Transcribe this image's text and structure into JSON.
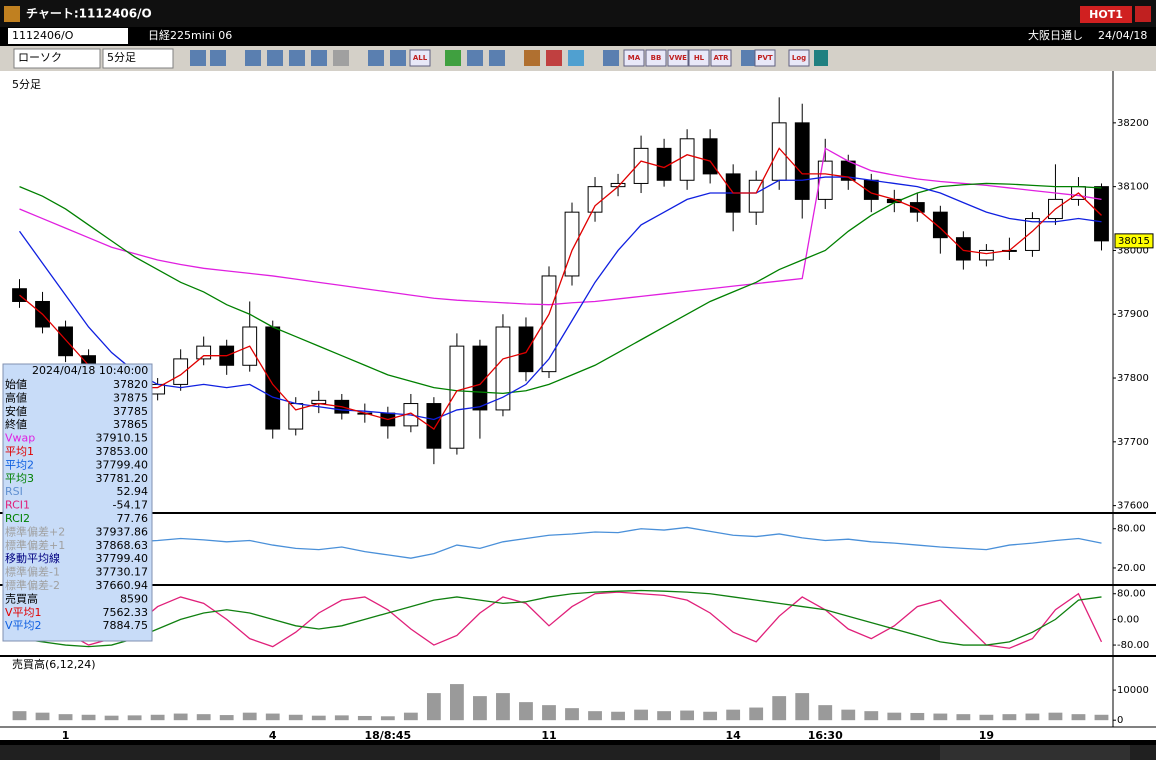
{
  "window": {
    "title": "チャート:1112406/O",
    "badge": "HOT1"
  },
  "toolbar": {
    "symbol": "1112406/O",
    "name": "日経225mini 06",
    "market": "大阪日通し",
    "date": "24/04/18",
    "chart_style": "ローソク",
    "interval": "5分足",
    "buttons": [
      "ALL",
      "MA",
      "BB",
      "VWE",
      "HL",
      "ATR",
      "PVT",
      "Log"
    ]
  },
  "info_panel": {
    "timestamp": "2024/04/18 10:40:00",
    "rows": [
      {
        "label": "始値",
        "value": "37820",
        "color": "#000000"
      },
      {
        "label": "高値",
        "value": "37875",
        "color": "#000000"
      },
      {
        "label": "安値",
        "value": "37785",
        "color": "#000000"
      },
      {
        "label": "終値",
        "value": "37865",
        "color": "#000000"
      },
      {
        "label": "Vwap",
        "value": "37910.15",
        "color": "#e020e0"
      },
      {
        "label": "平均1",
        "value": "37853.00",
        "color": "#e00000"
      },
      {
        "label": "平均2",
        "value": "37799.40",
        "color": "#1060e0"
      },
      {
        "label": "平均3",
        "value": "37781.20",
        "color": "#008000"
      },
      {
        "label": "RSI",
        "value": "52.94",
        "color": "#6090d0"
      },
      {
        "label": "RCI1",
        "value": "-54.17",
        "color": "#e0207a"
      },
      {
        "label": "RCI2",
        "value": "77.76",
        "color": "#008000"
      },
      {
        "label": "標準偏差+2",
        "value": "37937.86",
        "color": "#a0a0a0"
      },
      {
        "label": "標準偏差+1",
        "value": "37868.63",
        "color": "#a0a0a0"
      },
      {
        "label": "移動平均線",
        "value": "37799.40",
        "color": "#000080"
      },
      {
        "label": "標準偏差-1",
        "value": "37730.17",
        "color": "#a0a0a0"
      },
      {
        "label": "標準偏差-2",
        "value": "37660.94",
        "color": "#a0a0a0"
      },
      {
        "label": "売買高",
        "value": "8590",
        "color": "#000000"
      },
      {
        "label": "V平均1",
        "value": "7562.33",
        "color": "#e00000"
      },
      {
        "label": "V平均2",
        "value": "7884.75",
        "color": "#1060e0"
      }
    ]
  },
  "chart_data": [
    {
      "type": "candlestick",
      "title": "5分足",
      "categories": [
        null,
        null,
        "1",
        null,
        null,
        null,
        null,
        null,
        null,
        null,
        null,
        "4",
        null,
        null,
        null,
        null,
        "18/8:45",
        null,
        null,
        null,
        null,
        null,
        null,
        "11",
        null,
        null,
        null,
        null,
        null,
        null,
        null,
        "14",
        null,
        null,
        null,
        "16:30",
        null,
        null,
        null,
        null,
        null,
        null,
        "19",
        null,
        null,
        null,
        null,
        null
      ],
      "open": [
        37940,
        37920,
        37880,
        37835,
        37800,
        37790,
        37775,
        37790,
        37830,
        37850,
        37820,
        37880,
        37720,
        37760,
        37765,
        37745,
        37745,
        37725,
        37760,
        37690,
        37850,
        37750,
        37880,
        37810,
        37960,
        38060,
        38100,
        38105,
        38160,
        38110,
        38175,
        38120,
        38060,
        38110,
        38200,
        38080,
        38140,
        38110,
        38080,
        38075,
        38060,
        38020,
        37985,
        38000,
        38000,
        38050,
        38080,
        38100
      ],
      "high": [
        37955,
        37935,
        37890,
        37845,
        37815,
        37800,
        37800,
        37845,
        37865,
        37860,
        37920,
        37890,
        37770,
        37780,
        37775,
        37760,
        37755,
        37775,
        37770,
        37870,
        37860,
        37900,
        37895,
        37975,
        38075,
        38115,
        38120,
        38180,
        38175,
        38190,
        38190,
        38135,
        38125,
        38240,
        38230,
        38175,
        38150,
        38120,
        38095,
        38090,
        38070,
        38030,
        38010,
        38020,
        38060,
        38135,
        38115,
        38105
      ],
      "low": [
        37910,
        37870,
        37825,
        37790,
        37770,
        37760,
        37765,
        37780,
        37820,
        37805,
        37810,
        37705,
        37710,
        37745,
        37735,
        37730,
        37705,
        37715,
        37665,
        37680,
        37705,
        37740,
        37795,
        37800,
        37945,
        38045,
        38085,
        38090,
        38100,
        38095,
        38105,
        38030,
        38040,
        38095,
        38050,
        38065,
        38095,
        38060,
        38060,
        38045,
        37995,
        37970,
        37975,
        37985,
        37990,
        38040,
        38070,
        38000
      ],
      "close": [
        37920,
        37880,
        37835,
        37800,
        37790,
        37775,
        37790,
        37830,
        37850,
        37820,
        37880,
        37720,
        37760,
        37765,
        37745,
        37745,
        37725,
        37760,
        37690,
        37850,
        37750,
        37880,
        37810,
        37960,
        38060,
        38100,
        38105,
        38160,
        38110,
        38175,
        38120,
        38060,
        38110,
        38200,
        38080,
        38140,
        38110,
        38080,
        38075,
        38060,
        38020,
        37985,
        38000,
        38000,
        38050,
        38080,
        38100,
        38015
      ],
      "up_color": "#ffffff",
      "down_color": "#000000",
      "series": [
        {
          "color": "#e020e0",
          "values": [
            38065,
            38050,
            38035,
            38020,
            38005,
            37995,
            37985,
            37978,
            37972,
            37968,
            37964,
            37960,
            37955,
            37950,
            37945,
            37940,
            37935,
            37930,
            37925,
            37922,
            37920,
            37918,
            37916,
            37915,
            37918,
            37920,
            37924,
            37928,
            37932,
            37936,
            37940,
            37944,
            37948,
            37952,
            37956,
            38160,
            38140,
            38125,
            38118,
            38112,
            38108,
            38105,
            38102,
            38098,
            38094,
            38090,
            38086,
            38080
          ]
        },
        {
          "color": "#008000",
          "values": [
            38100,
            38085,
            38065,
            38040,
            38015,
            37990,
            37970,
            37950,
            37935,
            37915,
            37900,
            37880,
            37865,
            37850,
            37835,
            37820,
            37805,
            37795,
            37785,
            37780,
            37778,
            37776,
            37780,
            37790,
            37805,
            37820,
            37840,
            37860,
            37880,
            37900,
            37920,
            37935,
            37950,
            37970,
            37985,
            38000,
            38030,
            38055,
            38075,
            38090,
            38100,
            38103,
            38105,
            38104,
            38102,
            38100,
            38100,
            38098
          ]
        },
        {
          "color": "#1020e0",
          "values": [
            38030,
            37980,
            37930,
            37880,
            37840,
            37810,
            37790,
            37785,
            37790,
            37785,
            37790,
            37770,
            37760,
            37755,
            37750,
            37748,
            37745,
            37742,
            37735,
            37750,
            37755,
            37770,
            37790,
            37830,
            37890,
            37950,
            38000,
            38040,
            38060,
            38080,
            38090,
            38090,
            38090,
            38110,
            38110,
            38115,
            38115,
            38110,
            38105,
            38100,
            38090,
            38075,
            38060,
            38050,
            38045,
            38045,
            38050,
            38045
          ]
        },
        {
          "color": "#e00000",
          "values": [
            37930,
            37900,
            37860,
            37820,
            37800,
            37785,
            37785,
            37805,
            37835,
            37835,
            37850,
            37790,
            37750,
            37760,
            37755,
            37745,
            37735,
            37745,
            37720,
            37780,
            37790,
            37830,
            37840,
            37900,
            38000,
            38070,
            38100,
            38140,
            38130,
            38150,
            38140,
            38090,
            38090,
            38160,
            38120,
            38120,
            38115,
            38090,
            38080,
            38065,
            38035,
            38000,
            37995,
            38000,
            38030,
            38065,
            38090,
            38055
          ]
        }
      ],
      "ylim": [
        37590,
        38275
      ],
      "yticks": [
        37600,
        37700,
        37800,
        37900,
        38000,
        38100,
        38200
      ],
      "last_price": 38015
    },
    {
      "type": "line",
      "series": [
        {
          "color": "#4a90d9",
          "values": [
            60,
            62,
            58,
            55,
            57,
            60,
            62,
            65,
            63,
            60,
            62,
            55,
            50,
            48,
            52,
            45,
            40,
            35,
            42,
            55,
            50,
            60,
            65,
            70,
            72,
            75,
            74,
            80,
            78,
            82,
            76,
            70,
            68,
            72,
            66,
            62,
            64,
            60,
            58,
            55,
            52,
            50,
            48,
            55,
            58,
            62,
            65,
            58
          ]
        }
      ],
      "ylim": [
        -3,
        101
      ],
      "yticks": [
        {
          "value": 20,
          "label": "20.00"
        },
        {
          "value": 80,
          "label": "80.00"
        }
      ]
    },
    {
      "type": "line",
      "series": [
        {
          "color": "#e0207a",
          "values": [
            60,
            20,
            -40,
            -80,
            -60,
            -20,
            40,
            70,
            50,
            0,
            -60,
            -85,
            -40,
            20,
            60,
            70,
            30,
            -30,
            -80,
            -50,
            20,
            70,
            50,
            -20,
            40,
            80,
            85,
            80,
            75,
            60,
            20,
            -40,
            -70,
            10,
            70,
            30,
            -30,
            -60,
            -20,
            40,
            60,
            -10,
            -80,
            -90,
            -60,
            30,
            80,
            -70
          ]
        },
        {
          "color": "#108010",
          "values": [
            -60,
            -70,
            -80,
            -85,
            -80,
            -60,
            -30,
            0,
            20,
            30,
            20,
            0,
            -20,
            -30,
            -20,
            0,
            20,
            40,
            60,
            70,
            60,
            50,
            55,
            70,
            80,
            85,
            88,
            90,
            88,
            85,
            80,
            70,
            60,
            50,
            40,
            30,
            10,
            -10,
            -30,
            -50,
            -70,
            -80,
            -80,
            -70,
            -40,
            0,
            60,
            70
          ]
        }
      ],
      "ylim": [
        -111,
        101
      ],
      "yticks": [
        {
          "value": -80,
          "label": "-80.00"
        },
        {
          "value": 0,
          "label": "0.00"
        },
        {
          "value": 80,
          "label": "80.00"
        }
      ]
    },
    {
      "type": "bar",
      "title": "売買高(6,12,24)",
      "color": "#9a9a9a",
      "values": [
        3000,
        2500,
        2000,
        1800,
        1500,
        1600,
        1800,
        2200,
        2000,
        1700,
        2500,
        2200,
        1800,
        1500,
        1600,
        1400,
        1300,
        2500,
        9000,
        12000,
        8000,
        9000,
        6000,
        5000,
        4000,
        3000,
        2800,
        3500,
        3000,
        3200,
        2800,
        3500,
        4200,
        8000,
        9000,
        5000,
        3500,
        3000,
        2500,
        2400,
        2200,
        2000,
        1800,
        2000,
        2200,
        2500,
        2000,
        1800
      ],
      "ylim": [
        -1600,
        21000
      ],
      "yticks": [
        0,
        10000
      ]
    }
  ]
}
